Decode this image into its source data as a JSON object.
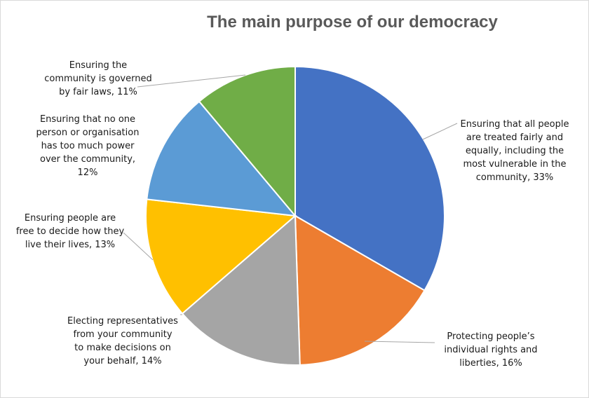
{
  "chart_data": {
    "type": "pie",
    "title": "The main purpose of our democracy",
    "start_angle_deg": 0,
    "direction": "clockwise",
    "slices": [
      {
        "label": "Ensuring that all people are treated fairly and equally, including the most vulnerable in the community",
        "value": 33,
        "color": "#4472C4",
        "label_lines": [
          "Ensuring that all people",
          "are treated fairly and",
          "equally, including the",
          "most vulnerable in the",
          "community, 33%"
        ]
      },
      {
        "label": "Protecting people’s individual rights and liberties",
        "value": 16,
        "color": "#ED7D31",
        "label_lines": [
          "Protecting people’s",
          "individual rights and",
          "liberties, 16%"
        ]
      },
      {
        "label": "Electing representatives from your community to make decisions on your behalf",
        "value": 14,
        "color": "#A5A5A5",
        "label_lines": [
          "Electing representatives",
          "from your community",
          "to make decisions on",
          "your behalf, 14%"
        ]
      },
      {
        "label": "Ensuring people are free to decide how they live their lives",
        "value": 13,
        "color": "#FFC000",
        "label_lines": [
          "Ensuring people are",
          "free to decide how they",
          "live their lives, 13%"
        ]
      },
      {
        "label": "Ensuring that no one person or organisation has too much power over the community",
        "value": 12,
        "color": "#5B9BD5",
        "label_lines": [
          "Ensuring that no one",
          "person or organisation",
          "has too much power",
          "over the community,",
          "12%"
        ]
      },
      {
        "label": "Ensuring the community is governed by fair laws",
        "value": 11,
        "color": "#70AD47",
        "label_lines": [
          "Ensuring the",
          "community is governed",
          "by fair laws, 11%"
        ]
      }
    ],
    "leader_line_color": "#a6a6a6",
    "slice_border_color": "#ffffff"
  }
}
